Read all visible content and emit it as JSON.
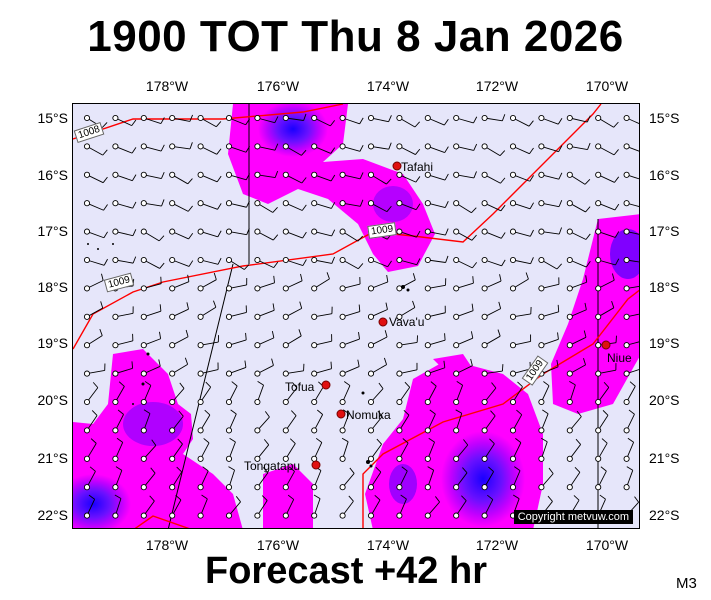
{
  "title": "1900 TOT Thu 8 Jan 2026",
  "footer": "Forecast +42 hr",
  "code": "M3",
  "copyright": "Copyright metvuw.com",
  "map": {
    "lon_range": [
      -180,
      -169.3
    ],
    "lat_range": [
      -22.2,
      -14.7
    ],
    "lon_ticks": [
      "178°W",
      "176°W",
      "174°W",
      "172°W",
      "170°W"
    ],
    "lat_ticks": [
      "15°S",
      "16°S",
      "17°S",
      "18°S",
      "19°S",
      "20°S",
      "21°S",
      "22°S"
    ],
    "isobar_labels": [
      "1008",
      "1009",
      "1009",
      "1009"
    ],
    "places": [
      {
        "name": "Tafahi"
      },
      {
        "name": "Vava'u"
      },
      {
        "name": "Niue"
      },
      {
        "name": "Tofua"
      },
      {
        "name": "Nomuka"
      },
      {
        "name": "Tongatapu"
      }
    ],
    "colors": {
      "background": "#e6e6fa",
      "rain_light": "#ff00ff",
      "rain_heavy": "#6600ff",
      "rain_extreme": "#1a00ff",
      "isobar": "#ff0000"
    }
  }
}
